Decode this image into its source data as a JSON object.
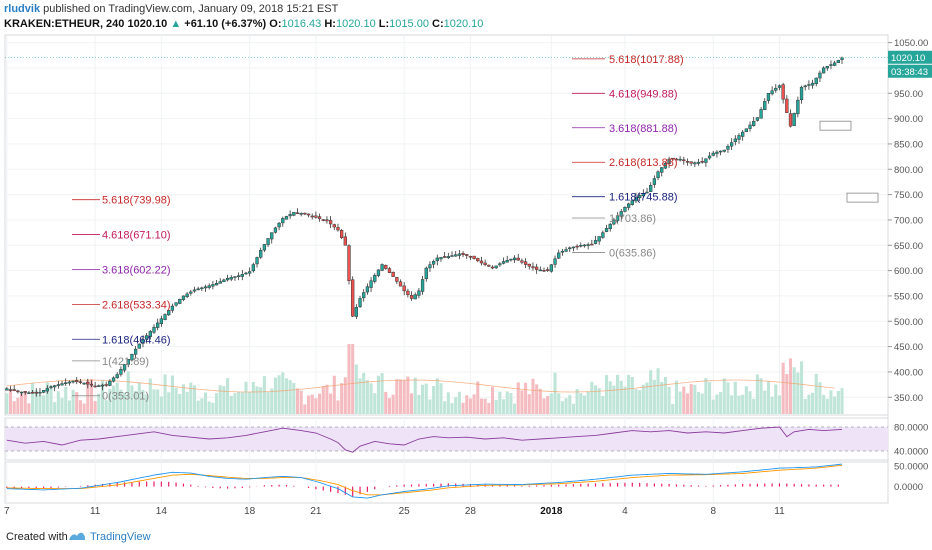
{
  "header": {
    "author": "rludvik",
    "published_text": "published on TradingView.com, January 09, 2018 15:21 EST",
    "symbol": "KRAKEN:ETHEUR, 240",
    "last": "1020.10",
    "change_arrow": "▲",
    "change": "+61.10 (+6.37%)",
    "o_label": "O:",
    "o_value": "1016.43",
    "h_label": "H:",
    "h_value": "1020.10",
    "l_label": "L:",
    "l_value": "1015.00",
    "c_label": "C:",
    "c_value": "1020.10"
  },
  "footer": {
    "created_with": "Created with",
    "brand": "TradingView"
  },
  "colors": {
    "up": "#26a69a",
    "down": "#ef5350",
    "volume_up": "#bfe4d8",
    "volume_down": "#f4bcc0",
    "rsi_line": "#8a3d9c",
    "rsi_band": "#efe3f7",
    "macd_line": "#2196f3",
    "signal_line": "#ff9800",
    "histogram": "#e91e63",
    "last_price_bg": "#26a69a"
  },
  "chart_data": {
    "type": "candlestick",
    "symbol": "KRAKEN:ETHEUR",
    "interval": "240",
    "y_ticks": [
      350,
      400,
      450,
      500,
      550,
      600,
      650,
      700,
      750,
      800,
      850,
      900,
      950,
      1000,
      1050
    ],
    "y_tick_labels": [
      "350.00",
      "400.00",
      "450.00",
      "500.00",
      "550.00",
      "600.00",
      "650.00",
      "700.00",
      "750.00",
      "800.00",
      "850.00",
      "900.00",
      "950.00",
      "1000.00",
      "1050.00"
    ],
    "ylim": [
      315,
      1065
    ],
    "x_labels": [
      "7",
      "11",
      "14",
      "18",
      "21",
      "25",
      "28",
      "2018",
      "4",
      "8",
      "11"
    ],
    "x_label_bars": [
      0,
      24,
      42,
      66,
      84,
      108,
      126,
      148,
      168,
      192,
      210
    ],
    "last_price_label": "1020.10",
    "countdown_label": "03:38:43",
    "close_path": [
      [
        0,
        367
      ],
      [
        3,
        361
      ],
      [
        6,
        359
      ],
      [
        9,
        360
      ],
      [
        12,
        371
      ],
      [
        15,
        377
      ],
      [
        18,
        382
      ],
      [
        21,
        378
      ],
      [
        24,
        372
      ],
      [
        27,
        375
      ],
      [
        30,
        395
      ],
      [
        33,
        425
      ],
      [
        36,
        455
      ],
      [
        39,
        480
      ],
      [
        42,
        505
      ],
      [
        45,
        530
      ],
      [
        48,
        550
      ],
      [
        51,
        562
      ],
      [
        54,
        568
      ],
      [
        57,
        575
      ],
      [
        60,
        585
      ],
      [
        63,
        590
      ],
      [
        66,
        598
      ],
      [
        69,
        640
      ],
      [
        72,
        675
      ],
      [
        75,
        703
      ],
      [
        78,
        715
      ],
      [
        81,
        712
      ],
      [
        84,
        705
      ],
      [
        87,
        698
      ],
      [
        90,
        680
      ],
      [
        92,
        650
      ],
      [
        93,
        580
      ],
      [
        94,
        510
      ],
      [
        96,
        545
      ],
      [
        99,
        580
      ],
      [
        102,
        612
      ],
      [
        105,
        588
      ],
      [
        108,
        560
      ],
      [
        110,
        545
      ],
      [
        112,
        560
      ],
      [
        114,
        605
      ],
      [
        117,
        625
      ],
      [
        120,
        628
      ],
      [
        123,
        633
      ],
      [
        126,
        628
      ],
      [
        129,
        615
      ],
      [
        132,
        605
      ],
      [
        135,
        618
      ],
      [
        138,
        625
      ],
      [
        141,
        612
      ],
      [
        144,
        602
      ],
      [
        147,
        600
      ],
      [
        150,
        635
      ],
      [
        153,
        645
      ],
      [
        156,
        650
      ],
      [
        159,
        652
      ],
      [
        162,
        675
      ],
      [
        165,
        700
      ],
      [
        168,
        725
      ],
      [
        171,
        745
      ],
      [
        174,
        755
      ],
      [
        177,
        795
      ],
      [
        180,
        820
      ],
      [
        183,
        820
      ],
      [
        186,
        812
      ],
      [
        189,
        815
      ],
      [
        192,
        832
      ],
      [
        195,
        838
      ],
      [
        198,
        860
      ],
      [
        201,
        880
      ],
      [
        204,
        902
      ],
      [
        207,
        950
      ],
      [
        210,
        965
      ],
      [
        213,
        885
      ],
      [
        216,
        962
      ],
      [
        219,
        970
      ],
      [
        222,
        1000
      ],
      [
        225,
        1010
      ],
      [
        227,
        1020.1
      ]
    ],
    "fib_set_1": {
      "levels": [
        {
          "label": "5.618(739.98)",
          "value": 739.98,
          "color": "#c62828"
        },
        {
          "label": "4.618(671.10)",
          "value": 671.1,
          "color": "#c2185b"
        },
        {
          "label": "3.618(602.22)",
          "value": 602.22,
          "color": "#8e24aa"
        },
        {
          "label": "2.618(533.34)",
          "value": 533.34,
          "color": "#c62828"
        },
        {
          "label": "1.618(464.46)",
          "value": 464.46,
          "color": "#1a237e"
        },
        {
          "label": "1(421.89)",
          "value": 421.89,
          "color": "#888888"
        },
        {
          "label": "0(353.01)",
          "value": 353.01,
          "color": "#888888"
        }
      ]
    },
    "fib_set_2": {
      "levels": [
        {
          "label": "5.618(1017.88)",
          "value": 1017.88,
          "color": "#c62828"
        },
        {
          "label": "4.618(949.88)",
          "value": 949.88,
          "color": "#c2185b"
        },
        {
          "label": "3.618(881.88)",
          "value": 881.88,
          "color": "#8e24aa"
        },
        {
          "label": "2.618(813.88)",
          "value": 813.88,
          "color": "#c62828"
        },
        {
          "label": "1.618(745.88)",
          "value": 745.88,
          "color": "#1a237e"
        },
        {
          "label": "1(703.86)",
          "value": 703.86,
          "color": "#888888"
        },
        {
          "label": "0(635.86)",
          "value": 635.86,
          "color": "#888888"
        }
      ]
    },
    "rsi": {
      "labels": [
        "80.0000",
        "40.0000"
      ],
      "levels": [
        80,
        40
      ],
      "ylim": [
        25,
        95
      ],
      "path": [
        [
          0,
          58
        ],
        [
          5,
          53
        ],
        [
          10,
          56
        ],
        [
          15,
          50
        ],
        [
          20,
          58
        ],
        [
          25,
          60
        ],
        [
          30,
          64
        ],
        [
          35,
          68
        ],
        [
          40,
          72
        ],
        [
          45,
          66
        ],
        [
          50,
          63
        ],
        [
          55,
          60
        ],
        [
          60,
          62
        ],
        [
          65,
          66
        ],
        [
          70,
          72
        ],
        [
          75,
          78
        ],
        [
          80,
          74
        ],
        [
          84,
          70
        ],
        [
          88,
          60
        ],
        [
          90,
          54
        ],
        [
          92,
          42
        ],
        [
          94,
          38
        ],
        [
          96,
          48
        ],
        [
          100,
          56
        ],
        [
          104,
          52
        ],
        [
          108,
          50
        ],
        [
          112,
          60
        ],
        [
          116,
          64
        ],
        [
          120,
          62
        ],
        [
          125,
          63
        ],
        [
          130,
          60
        ],
        [
          135,
          62
        ],
        [
          140,
          58
        ],
        [
          145,
          60
        ],
        [
          150,
          62
        ],
        [
          155,
          64
        ],
        [
          160,
          66
        ],
        [
          165,
          70
        ],
        [
          170,
          74
        ],
        [
          175,
          72
        ],
        [
          180,
          74
        ],
        [
          185,
          70
        ],
        [
          190,
          72
        ],
        [
          195,
          70
        ],
        [
          200,
          74
        ],
        [
          205,
          78
        ],
        [
          210,
          80
        ],
        [
          212,
          64
        ],
        [
          214,
          72
        ],
        [
          218,
          76
        ],
        [
          222,
          74
        ],
        [
          227,
          76
        ]
      ]
    },
    "macd": {
      "labels": [
        "50.0000",
        "0.0000"
      ],
      "levels": [
        50,
        0
      ],
      "ylim": [
        -40,
        60
      ],
      "macd_path": [
        [
          0,
          -5
        ],
        [
          10,
          -8
        ],
        [
          20,
          -4
        ],
        [
          30,
          10
        ],
        [
          40,
          28
        ],
        [
          45,
          35
        ],
        [
          50,
          33
        ],
        [
          55,
          25
        ],
        [
          60,
          20
        ],
        [
          65,
          18
        ],
        [
          70,
          22
        ],
        [
          75,
          25
        ],
        [
          80,
          22
        ],
        [
          85,
          10
        ],
        [
          90,
          -5
        ],
        [
          94,
          -25
        ],
        [
          98,
          -28
        ],
        [
          102,
          -20
        ],
        [
          108,
          -12
        ],
        [
          115,
          -5
        ],
        [
          120,
          2
        ],
        [
          130,
          6
        ],
        [
          140,
          5
        ],
        [
          150,
          10
        ],
        [
          160,
          18
        ],
        [
          170,
          28
        ],
        [
          180,
          32
        ],
        [
          190,
          30
        ],
        [
          200,
          36
        ],
        [
          210,
          45
        ],
        [
          220,
          48
        ],
        [
          227,
          55
        ]
      ],
      "signal_path": [
        [
          0,
          -3
        ],
        [
          10,
          -5
        ],
        [
          20,
          -5
        ],
        [
          30,
          4
        ],
        [
          40,
          20
        ],
        [
          45,
          28
        ],
        [
          50,
          30
        ],
        [
          55,
          27
        ],
        [
          60,
          23
        ],
        [
          65,
          20
        ],
        [
          70,
          20
        ],
        [
          75,
          22
        ],
        [
          80,
          22
        ],
        [
          85,
          15
        ],
        [
          90,
          5
        ],
        [
          94,
          -10
        ],
        [
          98,
          -20
        ],
        [
          102,
          -20
        ],
        [
          108,
          -15
        ],
        [
          115,
          -9
        ],
        [
          120,
          -3
        ],
        [
          130,
          3
        ],
        [
          140,
          4
        ],
        [
          150,
          7
        ],
        [
          160,
          13
        ],
        [
          170,
          22
        ],
        [
          180,
          28
        ],
        [
          190,
          29
        ],
        [
          200,
          32
        ],
        [
          210,
          40
        ],
        [
          220,
          45
        ],
        [
          227,
          52
        ]
      ]
    },
    "grid": true
  }
}
